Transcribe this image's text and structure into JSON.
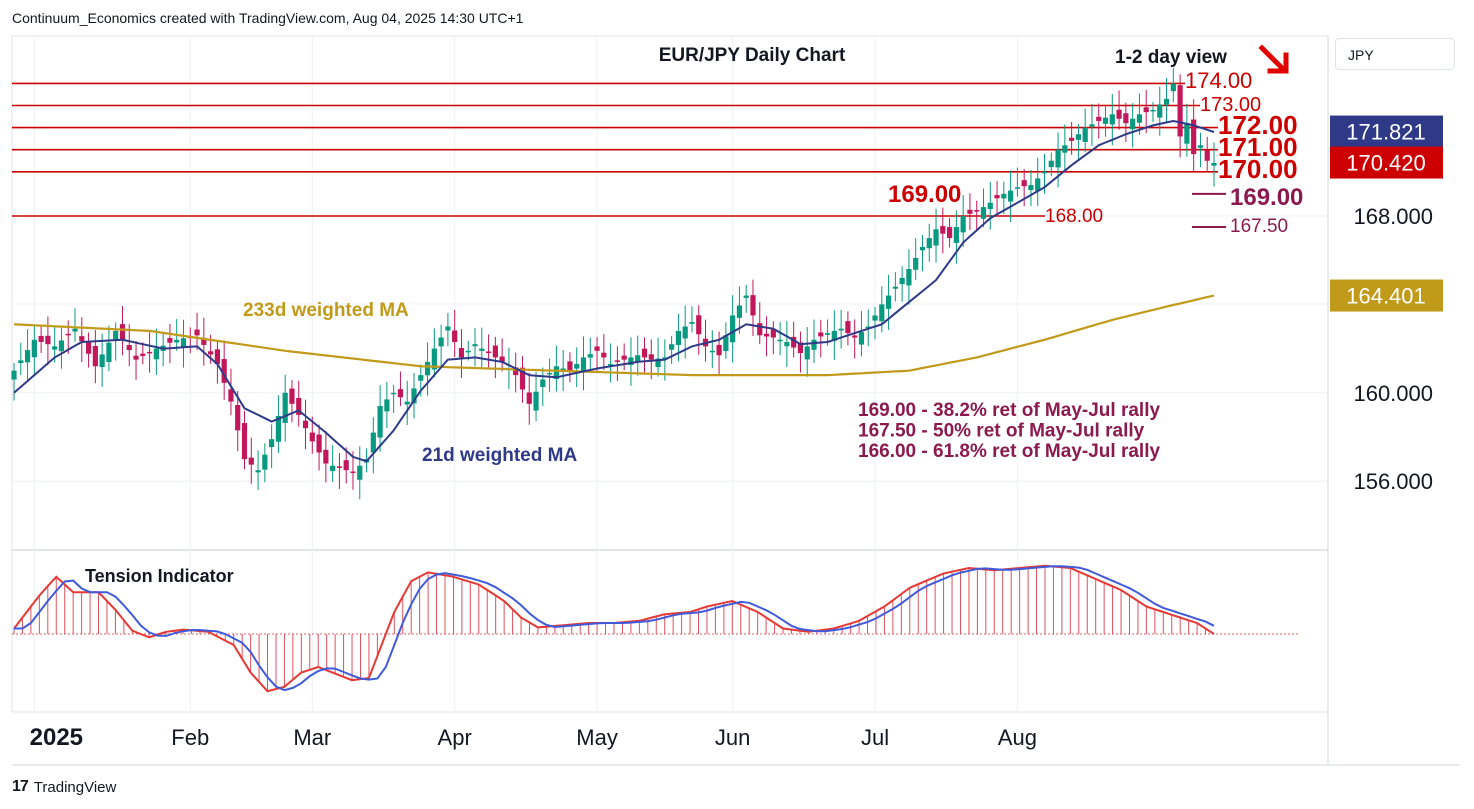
{
  "header": {
    "attribution": "Continuum_Economics created with TradingView.com, Aug 04, 2025 14:30 UTC+1",
    "currency": "JPY"
  },
  "footer": {
    "brand": "TradingView"
  },
  "colors": {
    "up": "#089981",
    "down": "#c2185b",
    "grid": "#eef0f3",
    "level": "#cc0000",
    "ma21": "#2e3a87",
    "ma233": "#c19a1a",
    "fib": "#8b1a4f",
    "last_close_bg": "#cc0000",
    "ma21_bg": "#2e3a87",
    "ma233_bg": "#c19a1a"
  },
  "chart_data": {
    "type": "candlestick",
    "title": "EUR/JPY Daily Chart",
    "subtitle": "1-2 day view",
    "y_ticks": [
      156,
      160,
      168
    ],
    "y_tick_labels": [
      "156.000",
      "160.000",
      "168.000"
    ],
    "x_ticks": [
      "2025",
      "Feb",
      "Mar",
      "Apr",
      "May",
      "Jun",
      "Jul",
      "Aug"
    ],
    "resistance_labels": [
      "174.00",
      "173.00",
      "172.00",
      "171.00",
      "170.00"
    ],
    "support_labels": [
      "169.00",
      "168.00"
    ],
    "fib_labels": [
      "169.00",
      "167.50"
    ],
    "levels": [
      174,
      173,
      172,
      171,
      170,
      168
    ],
    "fib_levels": [
      169,
      167.5
    ],
    "price_tags": [
      {
        "label": "171.821",
        "value": 171.821,
        "kind": "ma21"
      },
      {
        "label": "170.420",
        "value": 170.42,
        "kind": "last_close"
      },
      {
        "label": "164.401",
        "value": 164.401,
        "kind": "ma233"
      }
    ],
    "ma_labels": {
      "ma233": "233d weighted MA",
      "ma21": "21d weighted MA"
    },
    "notes": [
      "169.00 - 38.2% ret of May-Jul rally",
      "167.50 - 50% ret of May-Jul rally",
      "166.00 - 61.8% ret of May-Jul rally"
    ],
    "indicator_title": "Tension Indicator",
    "close_anchors": [
      [
        0,
        161.0
      ],
      [
        3,
        162.4
      ],
      [
        6,
        162.1
      ],
      [
        9,
        162.9
      ],
      [
        12,
        161.2
      ],
      [
        15,
        162.8
      ],
      [
        18,
        161.5
      ],
      [
        21,
        162.0
      ],
      [
        24,
        162.4
      ],
      [
        27,
        162.6
      ],
      [
        30,
        161.3
      ],
      [
        32,
        159.6
      ],
      [
        34,
        157.0
      ],
      [
        36,
        156.5
      ],
      [
        38,
        157.9
      ],
      [
        40,
        160.0
      ],
      [
        42,
        159.0
      ],
      [
        44,
        157.8
      ],
      [
        46,
        156.8
      ],
      [
        48,
        156.6
      ],
      [
        50,
        156.4
      ],
      [
        52,
        157.0
      ],
      [
        54,
        159.4
      ],
      [
        56,
        160.0
      ],
      [
        58,
        159.6
      ],
      [
        60,
        160.8
      ],
      [
        62,
        162.0
      ],
      [
        64,
        163.0
      ],
      [
        66,
        161.6
      ],
      [
        68,
        162.2
      ],
      [
        70,
        161.8
      ],
      [
        72,
        161.4
      ],
      [
        74,
        160.8
      ],
      [
        76,
        159.5
      ],
      [
        78,
        160.6
      ],
      [
        80,
        161.2
      ],
      [
        82,
        161.0
      ],
      [
        84,
        161.6
      ],
      [
        86,
        161.9
      ],
      [
        88,
        161.3
      ],
      [
        90,
        161.5
      ],
      [
        92,
        161.7
      ],
      [
        94,
        161.5
      ],
      [
        96,
        161.6
      ],
      [
        98,
        162.8
      ],
      [
        100,
        163.2
      ],
      [
        102,
        162.1
      ],
      [
        104,
        161.7
      ],
      [
        106,
        163.5
      ],
      [
        108,
        164.4
      ],
      [
        110,
        162.6
      ],
      [
        112,
        162.5
      ],
      [
        114,
        162.3
      ],
      [
        116,
        161.8
      ],
      [
        118,
        162.4
      ],
      [
        120,
        162.7
      ],
      [
        122,
        162.9
      ],
      [
        124,
        162.5
      ],
      [
        126,
        163.0
      ],
      [
        128,
        164.0
      ],
      [
        130,
        164.8
      ],
      [
        132,
        165.6
      ],
      [
        134,
        166.6
      ],
      [
        136,
        167.4
      ],
      [
        138,
        167.0
      ],
      [
        140,
        168.0
      ],
      [
        142,
        168.2
      ],
      [
        144,
        168.6
      ],
      [
        146,
        169.0
      ],
      [
        148,
        169.3
      ],
      [
        150,
        169.4
      ],
      [
        152,
        170.0
      ],
      [
        154,
        171.0
      ],
      [
        156,
        171.4
      ],
      [
        158,
        172.0
      ],
      [
        160,
        172.3
      ],
      [
        162,
        172.6
      ],
      [
        164,
        172.2
      ],
      [
        166,
        172.6
      ],
      [
        168,
        172.8
      ],
      [
        170,
        173.3
      ],
      [
        171,
        174.0
      ],
      [
        172,
        171.6
      ],
      [
        173,
        172.2
      ],
      [
        174,
        170.8
      ],
      [
        175,
        171.2
      ],
      [
        176,
        170.5
      ],
      [
        177,
        170.4
      ]
    ],
    "ma21_anchors": [
      [
        0,
        160.0
      ],
      [
        6,
        161.6
      ],
      [
        10,
        162.3
      ],
      [
        16,
        162.4
      ],
      [
        22,
        162.0
      ],
      [
        27,
        162.1
      ],
      [
        30,
        161.3
      ],
      [
        34,
        159.3
      ],
      [
        38,
        158.7
      ],
      [
        42,
        159.2
      ],
      [
        46,
        158.2
      ],
      [
        50,
        157.1
      ],
      [
        52,
        156.9
      ],
      [
        56,
        158.3
      ],
      [
        60,
        160.1
      ],
      [
        64,
        161.5
      ],
      [
        68,
        161.6
      ],
      [
        72,
        161.4
      ],
      [
        76,
        160.8
      ],
      [
        80,
        160.7
      ],
      [
        86,
        161.1
      ],
      [
        92,
        161.4
      ],
      [
        96,
        161.5
      ],
      [
        100,
        162.1
      ],
      [
        104,
        162.4
      ],
      [
        108,
        163.1
      ],
      [
        112,
        162.9
      ],
      [
        116,
        162.2
      ],
      [
        120,
        162.3
      ],
      [
        124,
        162.7
      ],
      [
        128,
        163.1
      ],
      [
        132,
        164.1
      ],
      [
        136,
        165.1
      ],
      [
        140,
        166.8
      ],
      [
        144,
        167.9
      ],
      [
        148,
        168.6
      ],
      [
        152,
        169.3
      ],
      [
        156,
        170.3
      ],
      [
        160,
        171.2
      ],
      [
        164,
        171.7
      ],
      [
        168,
        172.1
      ],
      [
        171,
        172.3
      ],
      [
        174,
        172.1
      ],
      [
        177,
        171.8
      ]
    ],
    "ma233_anchors": [
      [
        0,
        163.1
      ],
      [
        20,
        162.8
      ],
      [
        40,
        161.9
      ],
      [
        60,
        161.2
      ],
      [
        80,
        161.0
      ],
      [
        100,
        160.8
      ],
      [
        120,
        160.8
      ],
      [
        132,
        161.0
      ],
      [
        142,
        161.6
      ],
      [
        152,
        162.4
      ],
      [
        162,
        163.3
      ],
      [
        170,
        163.9
      ],
      [
        177,
        164.4
      ]
    ],
    "tension_anchors": [
      [
        0,
        0.05
      ],
      [
        3,
        0.35
      ],
      [
        5,
        0.52
      ],
      [
        7,
        0.38
      ],
      [
        10,
        0.38
      ],
      [
        12,
        0.22
      ],
      [
        14,
        0.03
      ],
      [
        16,
        -0.03
      ],
      [
        18,
        0.02
      ],
      [
        20,
        0.04
      ],
      [
        23,
        0.02
      ],
      [
        26,
        -0.1
      ],
      [
        28,
        -0.35
      ],
      [
        30,
        -0.52
      ],
      [
        32,
        -0.48
      ],
      [
        34,
        -0.35
      ],
      [
        36,
        -0.3
      ],
      [
        38,
        -0.36
      ],
      [
        40,
        -0.42
      ],
      [
        42,
        -0.4
      ],
      [
        45,
        0.2
      ],
      [
        47,
        0.48
      ],
      [
        49,
        0.56
      ],
      [
        52,
        0.52
      ],
      [
        55,
        0.45
      ],
      [
        58,
        0.3
      ],
      [
        60,
        0.15
      ],
      [
        62,
        0.06
      ],
      [
        65,
        0.08
      ],
      [
        68,
        0.1
      ],
      [
        71,
        0.1
      ],
      [
        74,
        0.12
      ],
      [
        77,
        0.18
      ],
      [
        80,
        0.2
      ],
      [
        82,
        0.25
      ],
      [
        85,
        0.3
      ],
      [
        88,
        0.2
      ],
      [
        91,
        0.05
      ],
      [
        94,
        0.02
      ],
      [
        97,
        0.05
      ],
      [
        100,
        0.12
      ],
      [
        103,
        0.25
      ],
      [
        106,
        0.42
      ],
      [
        110,
        0.55
      ],
      [
        113,
        0.6
      ],
      [
        116,
        0.58
      ],
      [
        119,
        0.6
      ],
      [
        122,
        0.62
      ],
      [
        125,
        0.6
      ],
      [
        128,
        0.5
      ],
      [
        131,
        0.4
      ],
      [
        134,
        0.25
      ],
      [
        136,
        0.2
      ],
      [
        138,
        0.15
      ],
      [
        140,
        0.1
      ],
      [
        142,
        0.0
      ]
    ]
  }
}
